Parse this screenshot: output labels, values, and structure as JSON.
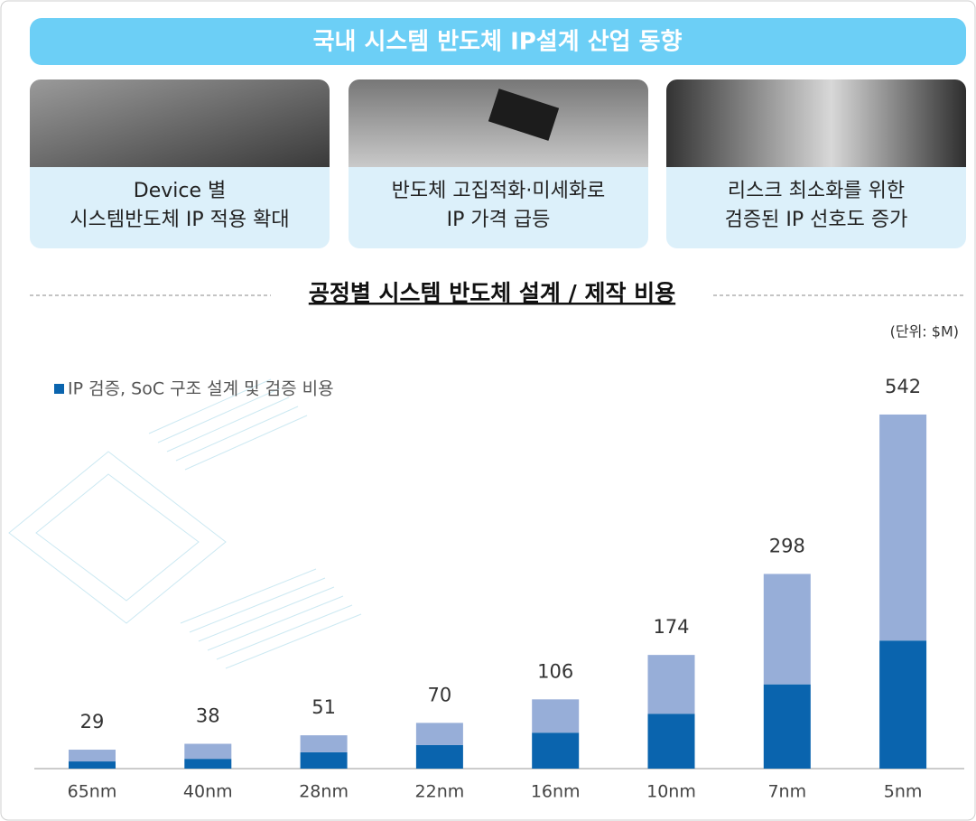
{
  "header": {
    "title": "국내 시스템 반도체 IP설계 산업 동향"
  },
  "cards": [
    {
      "lines": [
        "Device 별",
        "시스템반도체 IP 적용 확대"
      ]
    },
    {
      "lines": [
        "반도체 고집적화·미세화로",
        "IP 가격 급등"
      ]
    },
    {
      "lines": [
        "리스크 최소화를 위한",
        "검증된 IP 선호도 증가"
      ]
    }
  ],
  "chart_data": {
    "type": "bar",
    "stacked": true,
    "title": "공정별 시스템 반도체 설계 / 제작 비용",
    "unit": "(단위: $M)",
    "categories": [
      "65nm",
      "40nm",
      "28nm",
      "22nm",
      "16nm",
      "10nm",
      "7nm",
      "5nm"
    ],
    "series": [
      {
        "name": "IP 검증, SoC 구조 설계 및 검증 비용",
        "color": "#0a64ae",
        "values": [
          11,
          15,
          25,
          36,
          55,
          84,
          129,
          196
        ]
      },
      {
        "color": "#97aed8",
        "values": [
          18,
          23,
          26,
          34,
          51,
          90,
          169,
          346
        ]
      }
    ],
    "totals": [
      29,
      38,
      51,
      70,
      106,
      174,
      298,
      542
    ],
    "ylim": [
      0,
      600
    ]
  }
}
